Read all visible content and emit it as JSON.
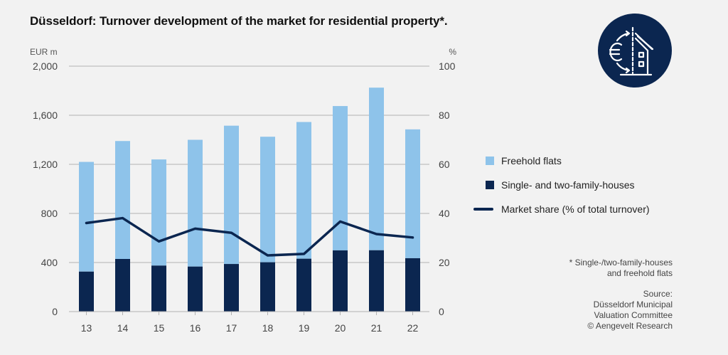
{
  "title": "Düsseldorf: Turnover development of the market for residential property*.",
  "icon": {
    "name": "euro-house-icon",
    "bg_color": "#0b2650"
  },
  "colors": {
    "freehold_flats": "#8ec3ea",
    "houses": "#0b2650",
    "market_share": "#0b2650",
    "gridline": "#b3b3b3",
    "background": "#f2f2f2"
  },
  "legend": {
    "items": [
      {
        "label": "Freehold flats",
        "type": "swatch",
        "color": "#8ec3ea"
      },
      {
        "label": "Single- and two-family-houses",
        "type": "swatch",
        "color": "#0b2650"
      },
      {
        "label": "Market share (% of total turnover)",
        "type": "line",
        "color": "#0b2650"
      }
    ]
  },
  "footnote": {
    "note_lines": [
      "* Single-/two-family-houses",
      "and freehold flats"
    ],
    "source_lines": [
      "Source:",
      "Düsseldorf Municipal",
      "Valuation Committee",
      "© Aengevelt Research"
    ]
  },
  "chart_data": {
    "type": "bar",
    "stacked": true,
    "title": "Düsseldorf: Turnover development of the market for residential property*.",
    "categories": [
      "13",
      "14",
      "15",
      "16",
      "17",
      "18",
      "19",
      "20",
      "21",
      "22"
    ],
    "xlabel": "",
    "ylabel": "EUR m",
    "y2label": "%",
    "ylim": [
      0,
      2000
    ],
    "y2lim": [
      0,
      100
    ],
    "yticks": [
      0,
      400,
      800,
      1200,
      1600,
      2000
    ],
    "ytick_labels": [
      "0",
      "400",
      "800",
      "1,200",
      "1,600",
      "2,000"
    ],
    "y2ticks": [
      0,
      20,
      40,
      60,
      80,
      100
    ],
    "y2tick_labels": [
      "0",
      "20",
      "40",
      "60",
      "80",
      "100"
    ],
    "grid": true,
    "legend_position": "right",
    "totals": [
      1220,
      1390,
      1240,
      1400,
      1515,
      1425,
      1545,
      1675,
      1825,
      1485
    ],
    "series": [
      {
        "name": "Single- and two-family-houses",
        "axis": "left",
        "type": "bar",
        "values": [
          326,
          429,
          375,
          367,
          388,
          402,
          431,
          499,
          500,
          435
        ]
      },
      {
        "name": "Freehold flats",
        "axis": "left",
        "type": "bar",
        "values": [
          894,
          961,
          865,
          1033,
          1127,
          1023,
          1114,
          1176,
          1325,
          1050
        ]
      },
      {
        "name": "Market share (% of total turnover)",
        "axis": "right",
        "type": "line",
        "values": [
          36.1,
          38.1,
          28.6,
          33.8,
          32.1,
          22.9,
          23.5,
          36.7,
          31.6,
          30.2
        ]
      }
    ]
  }
}
